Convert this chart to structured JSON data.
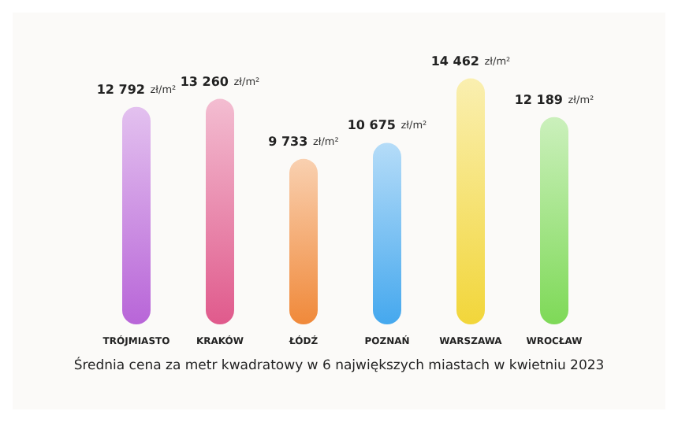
{
  "chart_data": {
    "type": "bar",
    "title": "Średnia cena za metr kwadratowy w 6 największych miastach w kwietniu 2023",
    "categories": [
      "TRÓJMIASTO",
      "KRAKÓW",
      "ŁÓDŹ",
      "POZNAŃ",
      "WARSZAWA",
      "WROCŁAW"
    ],
    "values": [
      12792,
      13260,
      9733,
      10675,
      14462,
      12189
    ],
    "colors": [
      "#b865d8",
      "#e05a8c",
      "#f0893a",
      "#45a8ee",
      "#f2d63a",
      "#7ed957"
    ],
    "value_labels": [
      "12 792 zł/m²",
      "13 260 zł/m²",
      "9 733 zł/m²",
      "10 675 zł/m²",
      "14 462 zł/m²",
      "12 189 zł/m²"
    ]
  }
}
